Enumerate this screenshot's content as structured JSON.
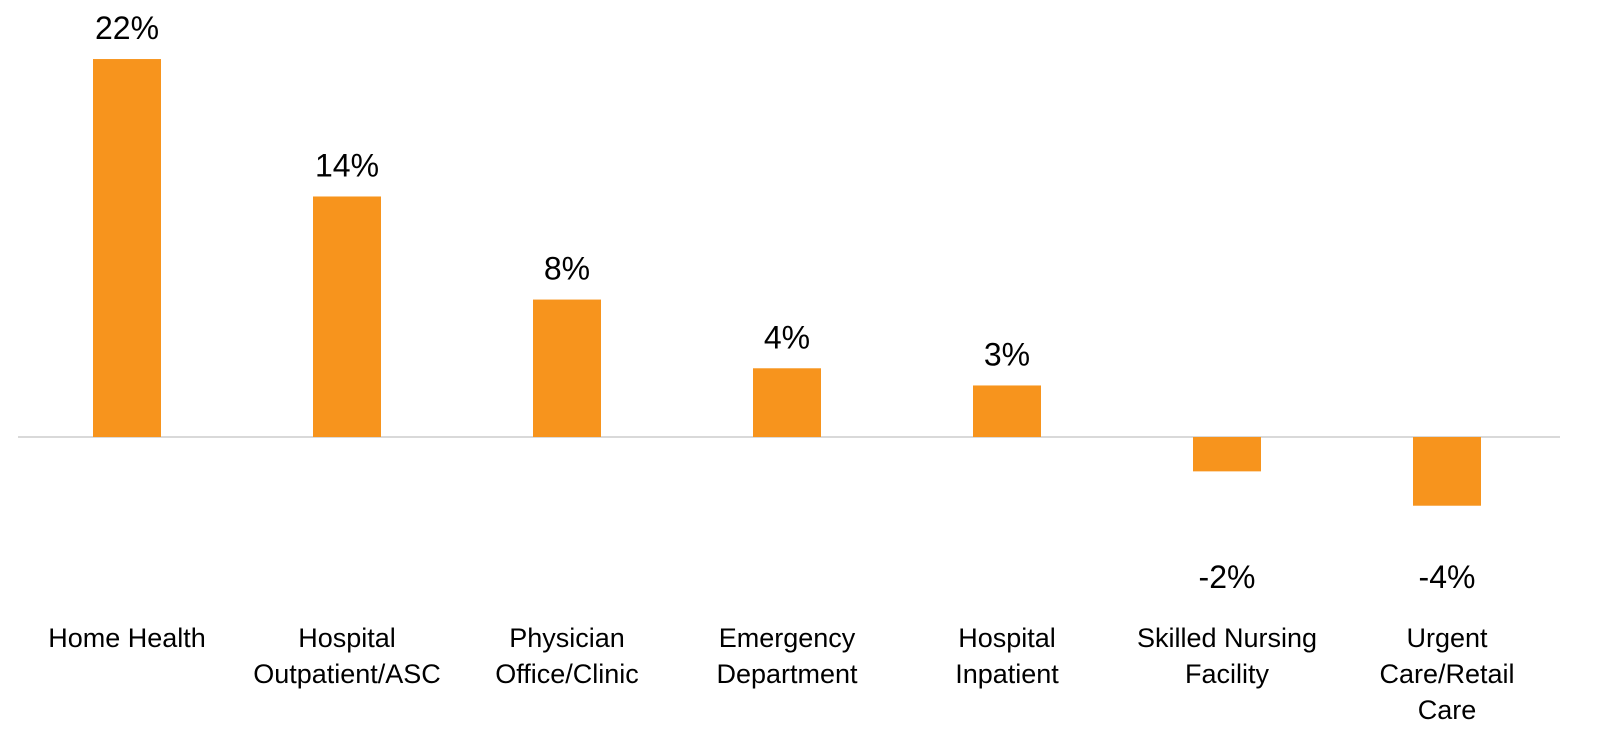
{
  "chart_data": {
    "type": "bar",
    "title": "",
    "xlabel": "",
    "ylabel": "",
    "categories": [
      [
        "Home Health"
      ],
      [
        "Hospital",
        "Outpatient/ASC"
      ],
      [
        "Physician",
        "Office/Clinic"
      ],
      [
        "Emergency",
        "Department"
      ],
      [
        "Hospital",
        "Inpatient"
      ],
      [
        "Skilled Nursing",
        "Facility"
      ],
      [
        "Urgent",
        "Care/Retail",
        "Care"
      ]
    ],
    "values": [
      22,
      14,
      8,
      4,
      3,
      -2,
      -4
    ],
    "value_labels": [
      "22%",
      "14%",
      "8%",
      "4%",
      "3%",
      "-2%",
      "-4%"
    ],
    "unit": "%",
    "ylim": [
      -4,
      22
    ],
    "grid": false,
    "legend": "none",
    "bar_color": "#F7941D",
    "axis_color": "#D9D9D9"
  }
}
